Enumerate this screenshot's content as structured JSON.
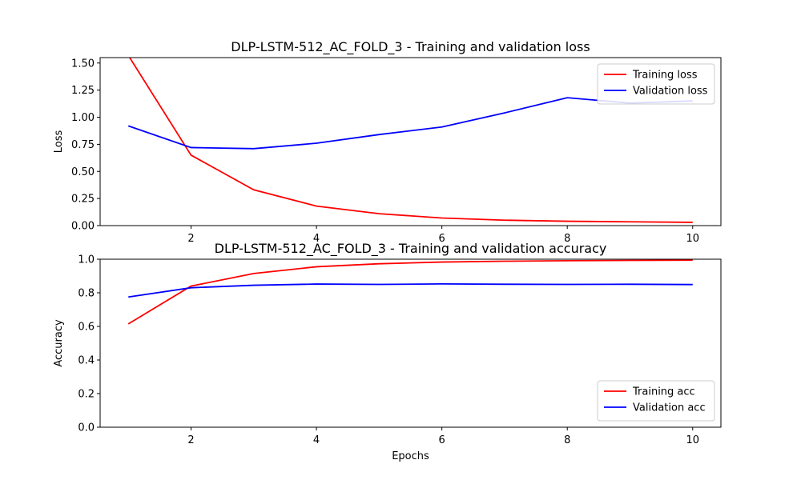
{
  "chart_data": [
    {
      "type": "line",
      "title": "DLP-LSTM-512_AC_FOLD_3 - Training and validation loss",
      "xlabel": "",
      "ylabel": "Loss",
      "xlim": [
        0.55,
        10.45
      ],
      "ylim": [
        0.0,
        1.55
      ],
      "xticks": [
        2,
        4,
        6,
        8,
        10
      ],
      "xtick_labels": [
        "2",
        "4",
        "6",
        "8",
        "10"
      ],
      "yticks": [
        0.0,
        0.25,
        0.5,
        0.75,
        1.0,
        1.25,
        1.5
      ],
      "ytick_labels": [
        "0.00",
        "0.25",
        "0.50",
        "0.75",
        "1.00",
        "1.25",
        "1.50"
      ],
      "grid": false,
      "legend_position": "top-right",
      "x": [
        1,
        2,
        3,
        4,
        5,
        6,
        7,
        8,
        9,
        10
      ],
      "series": [
        {
          "name": "Training loss",
          "color": "#ff0000",
          "values": [
            1.57,
            0.65,
            0.33,
            0.18,
            0.11,
            0.07,
            0.05,
            0.04,
            0.035,
            0.03
          ]
        },
        {
          "name": "Validation loss",
          "color": "#0000ff",
          "values": [
            0.92,
            0.72,
            0.71,
            0.76,
            0.84,
            0.91,
            1.04,
            1.18,
            1.13,
            1.15
          ]
        }
      ]
    },
    {
      "type": "line",
      "title": "DLP-LSTM-512_AC_FOLD_3 - Training and validation accuracy",
      "xlabel": "Epochs",
      "ylabel": "Accuracy",
      "xlim": [
        0.55,
        10.45
      ],
      "ylim": [
        0.0,
        1.0
      ],
      "xticks": [
        2,
        4,
        6,
        8,
        10
      ],
      "xtick_labels": [
        "2",
        "4",
        "6",
        "8",
        "10"
      ],
      "yticks": [
        0.0,
        0.2,
        0.4,
        0.6,
        0.8,
        1.0
      ],
      "ytick_labels": [
        "0.0",
        "0.2",
        "0.4",
        "0.6",
        "0.8",
        "1.0"
      ],
      "grid": false,
      "legend_position": "lower-right",
      "x": [
        1,
        2,
        3,
        4,
        5,
        6,
        7,
        8,
        9,
        10
      ],
      "series": [
        {
          "name": "Training acc",
          "color": "#ff0000",
          "values": [
            0.615,
            0.84,
            0.915,
            0.955,
            0.973,
            0.983,
            0.988,
            0.991,
            0.993,
            0.994
          ]
        },
        {
          "name": "Validation acc",
          "color": "#0000ff",
          "values": [
            0.775,
            0.83,
            0.845,
            0.852,
            0.85,
            0.853,
            0.851,
            0.85,
            0.851,
            0.849
          ]
        }
      ]
    }
  ]
}
